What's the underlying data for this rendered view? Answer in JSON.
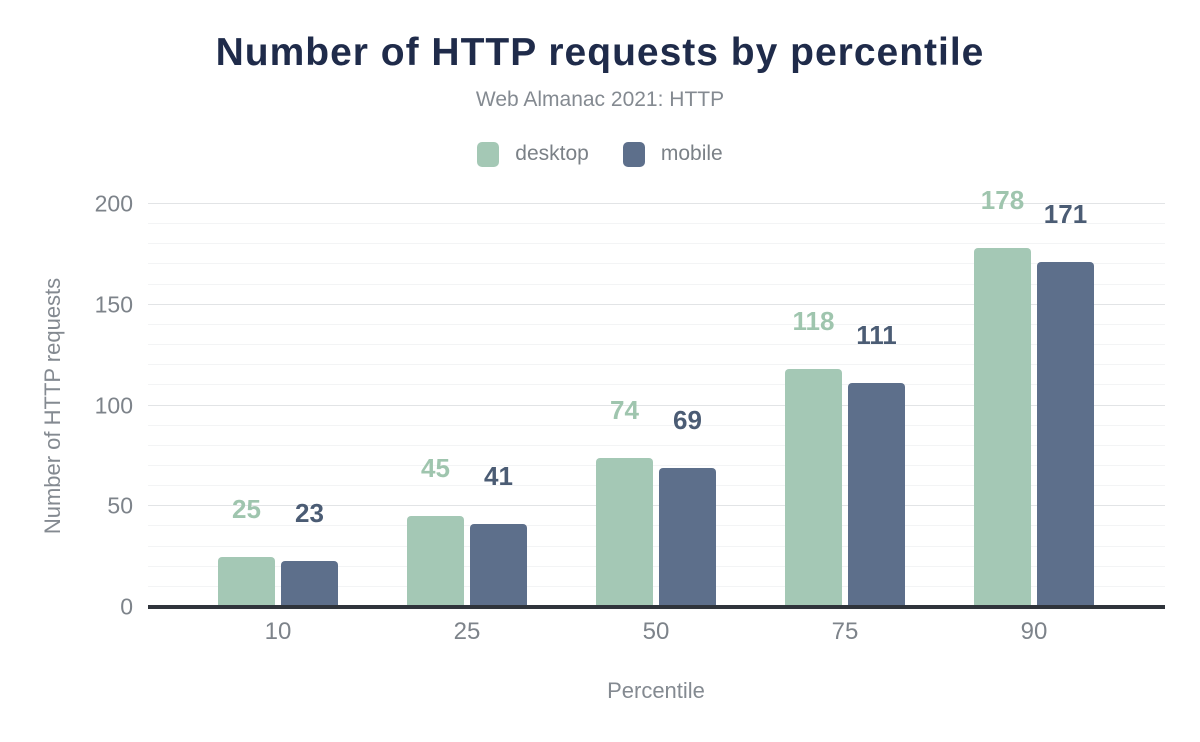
{
  "chart_data": {
    "type": "bar",
    "title": "Number of HTTP requests by percentile",
    "subtitle": "Web Almanac 2021: HTTP",
    "xlabel": "Percentile",
    "ylabel": "Number of HTTP requests",
    "categories": [
      "10",
      "25",
      "50",
      "75",
      "90"
    ],
    "series": [
      {
        "name": "desktop",
        "values": [
          25,
          45,
          74,
          118,
          178
        ],
        "bar_color": "#a4c8b5",
        "label_color": "#9fc5ae"
      },
      {
        "name": "mobile",
        "values": [
          23,
          41,
          69,
          111,
          171
        ],
        "bar_color": "#5d6f8b",
        "label_color": "#4b5c74"
      }
    ],
    "ylim": [
      0,
      200
    ],
    "yticks": [
      0,
      50,
      100,
      150,
      200
    ],
    "minor_tick_step": 10,
    "grid": "on",
    "legend_position": "top",
    "value_labels": "above bars"
  },
  "colors": {
    "background": "#ffffff",
    "title": "#1f2b4a",
    "subtitle": "#848a91",
    "axis_text": "#7d838a",
    "axis_title": "#848a91",
    "legend_text": "#7b8187",
    "grid_major": "#e2e4e6",
    "grid_minor": "#f3f4f5",
    "baseline": "#2f343b"
  }
}
